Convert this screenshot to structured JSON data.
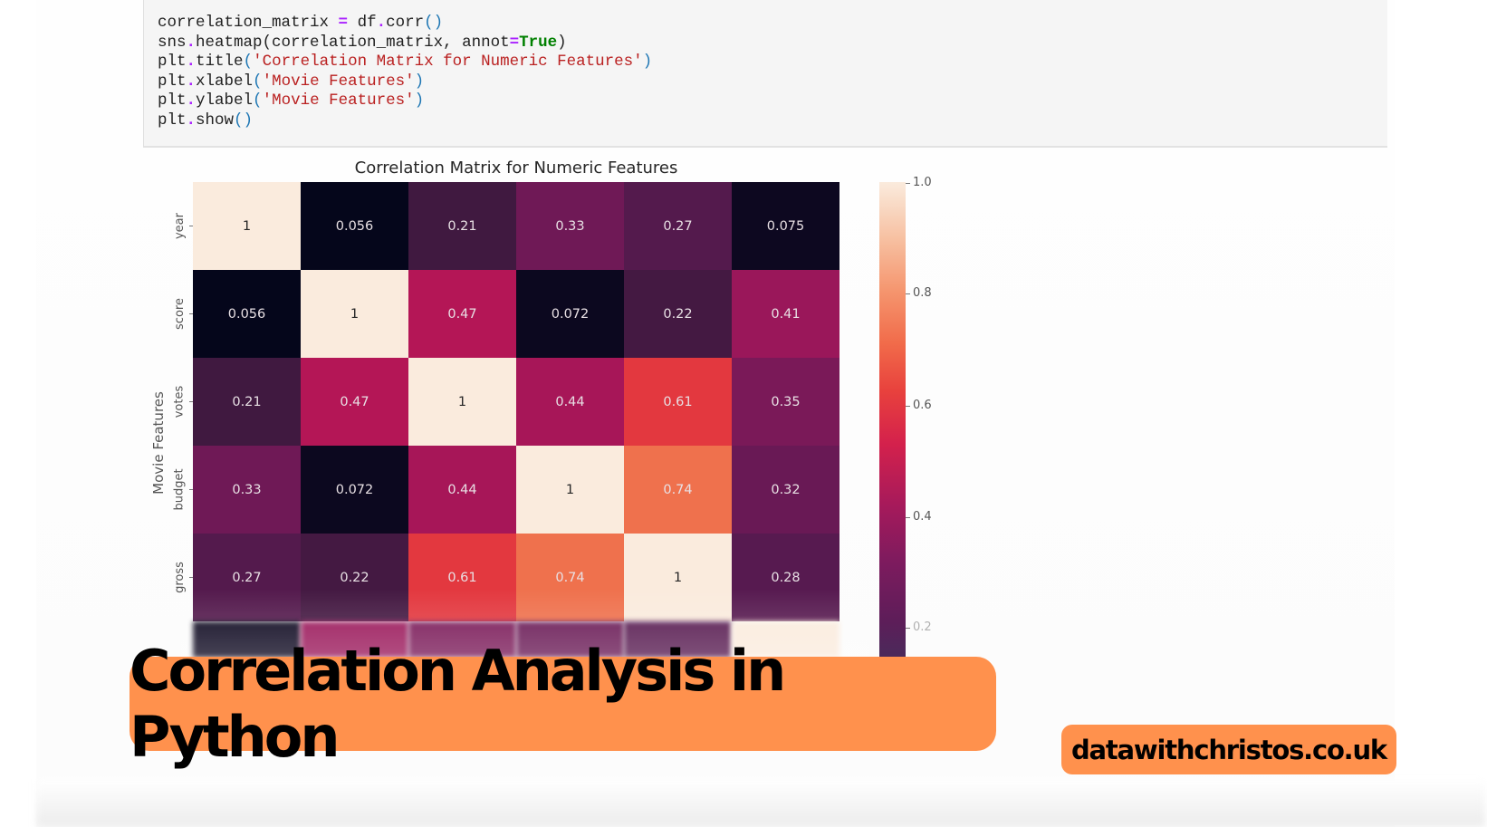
{
  "code_cell": {
    "lines": [
      "correlation_matrix = df.corr()",
      "sns.heatmap(correlation_matrix, annot=True)",
      "plt.title('Correlation Matrix for Numeric Features')",
      "plt.xlabel('Movie Features')",
      "plt.ylabel('Movie Features')",
      "plt.show()"
    ]
  },
  "colors": {
    "banner": "#ff914d",
    "code_bg": "#f5f5f5",
    "string": "#ba2121",
    "keyword": "#008000"
  },
  "banner": {
    "title": "Correlation Analysis in Python",
    "url": "datawithchristos.co.uk"
  },
  "chart_data": {
    "type": "heatmap",
    "title": "Correlation Matrix for Numeric Features",
    "xlabel": "Movie Features",
    "ylabel": "Movie Features",
    "row_labels": [
      "year",
      "score",
      "votes",
      "budget",
      "gross"
    ],
    "visible_columns": 6,
    "values": [
      [
        1,
        0.056,
        0.21,
        0.33,
        0.27,
        0.075
      ],
      [
        0.056,
        1,
        0.47,
        0.072,
        0.22,
        0.41
      ],
      [
        0.21,
        0.47,
        1,
        0.44,
        0.61,
        0.35
      ],
      [
        0.33,
        0.072,
        0.44,
        1,
        0.74,
        0.32
      ],
      [
        0.27,
        0.22,
        0.61,
        0.74,
        1,
        0.28
      ]
    ],
    "labels": [
      [
        "1",
        "0.056",
        "0.21",
        "0.33",
        "0.27",
        "0.075"
      ],
      [
        "0.056",
        "1",
        "0.47",
        "0.072",
        "0.22",
        "0.41"
      ],
      [
        "0.21",
        "0.47",
        "1",
        "0.44",
        "0.61",
        "0.35"
      ],
      [
        "0.33",
        "0.072",
        "0.44",
        "1",
        "0.74",
        "0.32"
      ],
      [
        "0.27",
        "0.22",
        "0.61",
        "0.74",
        "1",
        "0.28"
      ]
    ],
    "colorbar": {
      "ticks": [
        "1.0",
        "0.8",
        "0.6",
        "0.4",
        "0.2"
      ],
      "range": [
        0.05,
        1.0
      ],
      "colormap": "rocket"
    },
    "grid": false
  }
}
